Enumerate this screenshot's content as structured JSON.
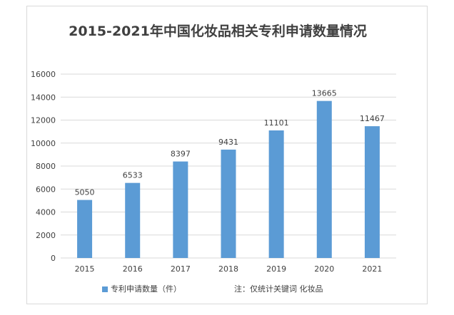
{
  "chart_data": {
    "type": "bar",
    "title": "2015-2021年中国化妆品相关专利申请数量情况",
    "categories": [
      "2015",
      "2016",
      "2017",
      "2018",
      "2019",
      "2020",
      "2021"
    ],
    "series": [
      {
        "name": "专利申请数量（件）",
        "values": [
          5050,
          6533,
          8397,
          9431,
          11101,
          13665,
          11467
        ]
      }
    ],
    "yticks": [
      "0",
      "2000",
      "4000",
      "6000",
      "8000",
      "10000",
      "12000",
      "14000",
      "16000"
    ],
    "ylim": [
      0,
      16000
    ],
    "grid": true,
    "data_labels": true,
    "legend_position": "bottom-left",
    "bar_color": "#5b9bd5",
    "grid_color": "#d9d9d9",
    "text_color": "#404040"
  },
  "note": "注：仅统计关键词 化妆品"
}
